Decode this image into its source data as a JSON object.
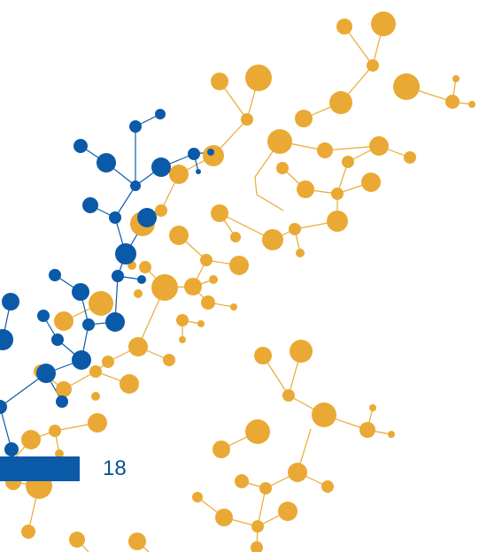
{
  "page": {
    "number": "18"
  },
  "colors": {
    "orange": "#eaa934",
    "blue": "#0a5aa8",
    "page_number": "#0a4f97"
  },
  "decoration": {
    "icon": "molecular-network-illustration"
  }
}
